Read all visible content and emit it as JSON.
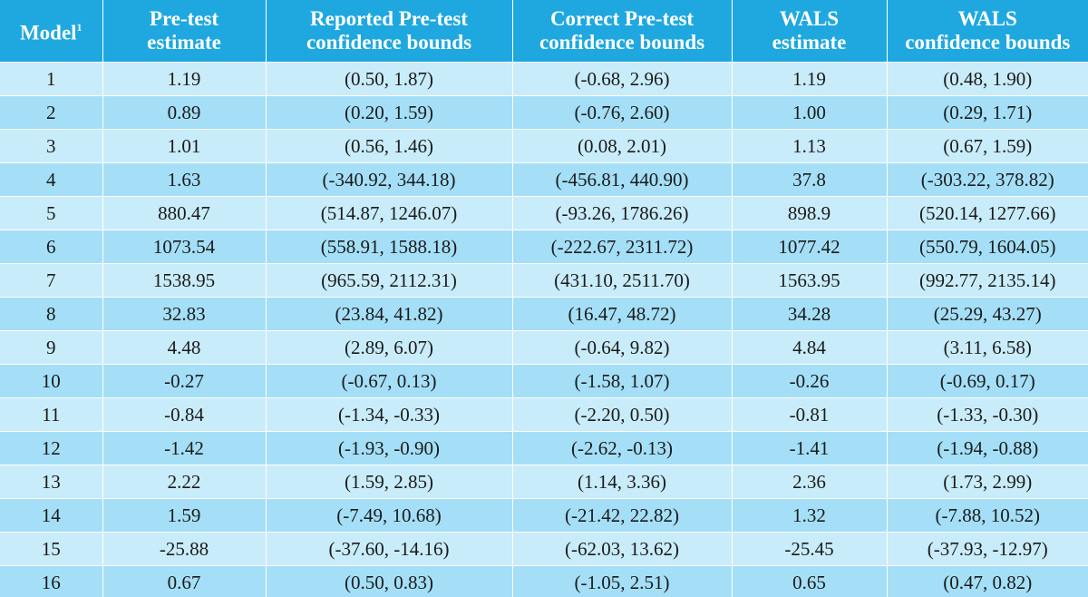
{
  "table": {
    "headers": [
      {
        "line1": "Model",
        "sup": "1",
        "line2": ""
      },
      {
        "line1": "Pre-test",
        "sup": "",
        "line2": "estimate"
      },
      {
        "line1": "Reported Pre-test",
        "sup": "",
        "line2": "confidence bounds"
      },
      {
        "line1": "Correct Pre-test",
        "sup": "",
        "line2": "confidence bounds"
      },
      {
        "line1": "WALS",
        "sup": "",
        "line2": "estimate"
      },
      {
        "line1": "WALS",
        "sup": "",
        "line2": "confidence bounds"
      }
    ],
    "rows": [
      [
        "1",
        "1.19",
        "(0.50, 1.87)",
        "(-0.68, 2.96)",
        "1.19",
        "(0.48, 1.90)"
      ],
      [
        "2",
        "0.89",
        "(0.20, 1.59)",
        "(-0.76, 2.60)",
        "1.00",
        "(0.29, 1.71)"
      ],
      [
        "3",
        "1.01",
        "(0.56, 1.46)",
        "(0.08, 2.01)",
        "1.13",
        "(0.67, 1.59)"
      ],
      [
        "4",
        "1.63",
        "(-340.92, 344.18)",
        "(-456.81, 440.90)",
        "37.8",
        "(-303.22, 378.82)"
      ],
      [
        "5",
        "880.47",
        "(514.87, 1246.07)",
        "(-93.26, 1786.26)",
        "898.9",
        "(520.14, 1277.66)"
      ],
      [
        "6",
        "1073.54",
        "(558.91, 1588.18)",
        "(-222.67, 2311.72)",
        "1077.42",
        "(550.79, 1604.05)"
      ],
      [
        "7",
        "1538.95",
        "(965.59, 2112.31)",
        "(431.10, 2511.70)",
        "1563.95",
        "(992.77, 2135.14)"
      ],
      [
        "8",
        "32.83",
        "(23.84, 41.82)",
        "(16.47, 48.72)",
        "34.28",
        "(25.29, 43.27)"
      ],
      [
        "9",
        "4.48",
        "(2.89, 6.07)",
        "(-0.64, 9.82)",
        "4.84",
        "(3.11, 6.58)"
      ],
      [
        "10",
        "-0.27",
        "(-0.67, 0.13)",
        "(-1.58, 1.07)",
        "-0.26",
        "(-0.69, 0.17)"
      ],
      [
        "11",
        "-0.84",
        "(-1.34, -0.33)",
        "(-2.20, 0.50)",
        "-0.81",
        "(-1.33, -0.30)"
      ],
      [
        "12",
        "-1.42",
        "(-1.93, -0.90)",
        "(-2.62, -0.13)",
        "-1.41",
        "(-1.94, -0.88)"
      ],
      [
        "13",
        "2.22",
        "(1.59, 2.85)",
        "(1.14, 3.36)",
        "2.36",
        "(1.73, 2.99)"
      ],
      [
        "14",
        "1.59",
        "(-7.49, 10.68)",
        "(-21.42, 22.82)",
        "1.32",
        "(-7.88, 10.52)"
      ],
      [
        "15",
        "-25.88",
        "(-37.60, -14.16)",
        "(-62.03, 13.62)",
        "-25.45",
        "(-37.93, -12.97)"
      ],
      [
        "16",
        "0.67",
        "(0.50, 0.83)",
        "(-1.05, 2.51)",
        "0.65",
        "(0.47, 0.82)"
      ]
    ]
  },
  "colors": {
    "header_bg": "#1fa8e0",
    "header_text": "#ffffff",
    "row_light": "#c9ecfa",
    "row_dark": "#a4dff7"
  }
}
